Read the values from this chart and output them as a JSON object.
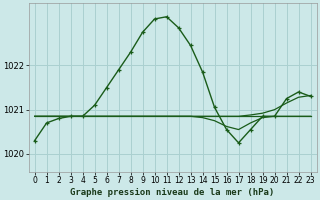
{
  "title": "Graphe pression niveau de la mer (hPa)",
  "bg_color": "#cce8e8",
  "grid_color": "#aad0d0",
  "line_color": "#1a5c1a",
  "x_ticks": [
    0,
    1,
    2,
    3,
    4,
    5,
    6,
    7,
    8,
    9,
    10,
    11,
    12,
    13,
    14,
    15,
    16,
    17,
    18,
    19,
    20,
    21,
    22,
    23
  ],
  "y_ticks": [
    1020,
    1021,
    1022
  ],
  "ylim": [
    1019.6,
    1023.4
  ],
  "xlim": [
    -0.5,
    23.5
  ],
  "series1": [
    1020.3,
    1020.7,
    1020.8,
    1020.85,
    1020.85,
    1021.1,
    1021.5,
    1021.9,
    1022.3,
    1022.75,
    1023.05,
    1023.1,
    1022.85,
    1022.45,
    1021.85,
    1021.05,
    1020.55,
    1020.25,
    1020.55,
    1020.85,
    1020.85,
    1021.25,
    1021.4,
    1021.3
  ],
  "series2_flat": 1020.85,
  "series3": [
    1020.85,
    1020.85,
    1020.85,
    1020.85,
    1020.85,
    1020.85,
    1020.85,
    1020.85,
    1020.85,
    1020.85,
    1020.85,
    1020.85,
    1020.85,
    1020.85,
    1020.85,
    1020.85,
    1020.85,
    1020.85,
    1020.88,
    1020.92,
    1021.0,
    1021.15,
    1021.28,
    1021.32
  ],
  "series4": [
    1020.85,
    1020.85,
    1020.85,
    1020.85,
    1020.85,
    1020.85,
    1020.85,
    1020.85,
    1020.85,
    1020.85,
    1020.85,
    1020.85,
    1020.85,
    1020.85,
    1020.82,
    1020.75,
    1020.62,
    1020.55,
    1020.7,
    1020.82,
    1020.85,
    1020.85,
    1020.85,
    1020.85
  ],
  "tick_fontsize": 6,
  "xlabel_fontsize": 6.5
}
